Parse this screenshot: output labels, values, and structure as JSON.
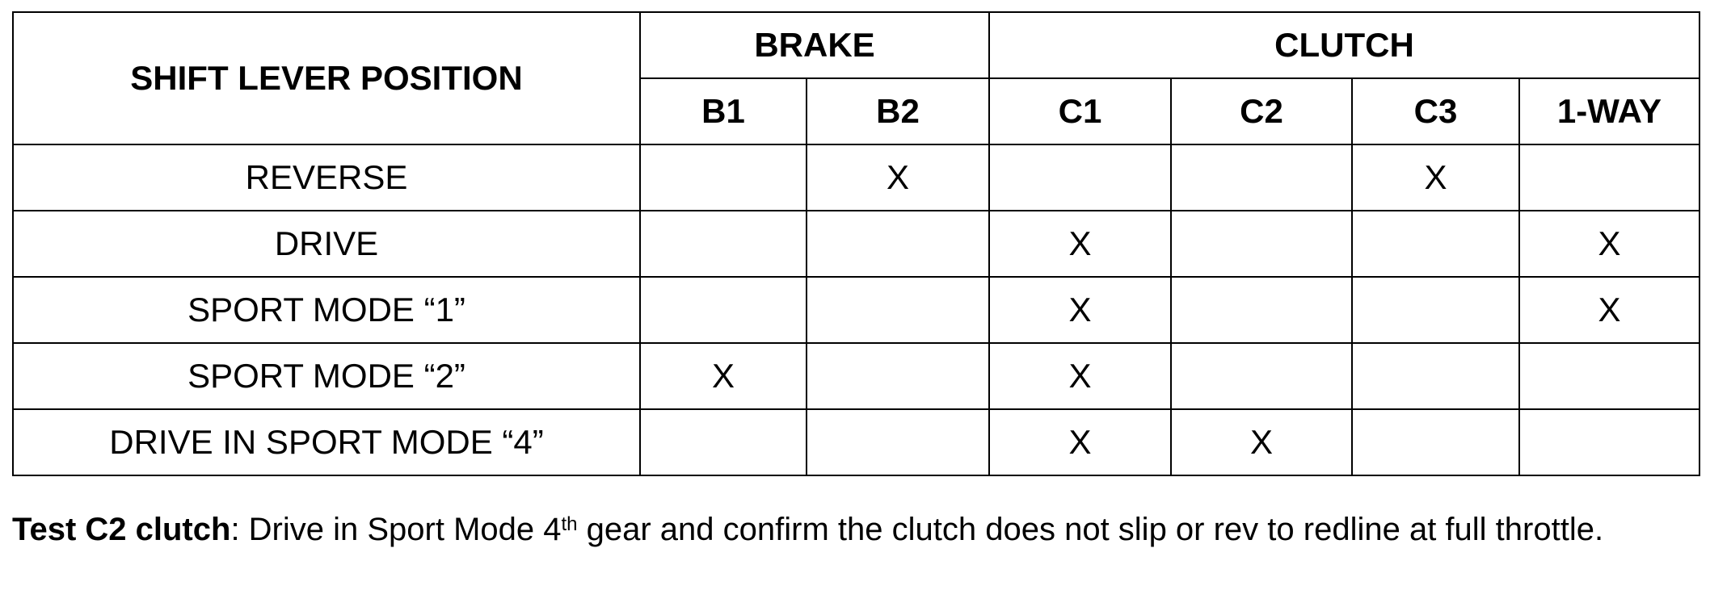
{
  "table": {
    "header": {
      "row_label": "SHIFT LEVER POSITION",
      "groups": [
        "BRAKE",
        "CLUTCH"
      ],
      "columns": [
        "B1",
        "B2",
        "C1",
        "C2",
        "C3",
        "1-WAY"
      ]
    },
    "rows": [
      {
        "label": "REVERSE",
        "cells": [
          "",
          "X",
          "",
          "",
          "X",
          ""
        ]
      },
      {
        "label": "DRIVE",
        "cells": [
          "",
          "",
          "X",
          "",
          "",
          "X"
        ]
      },
      {
        "label": "SPORT MODE “1”",
        "cells": [
          "",
          "",
          "X",
          "",
          "",
          "X"
        ]
      },
      {
        "label": "SPORT MODE “2”",
        "cells": [
          "X",
          "",
          "X",
          "",
          "",
          ""
        ]
      },
      {
        "label": "DRIVE IN SPORT MODE “4”",
        "cells": [
          "",
          "",
          "X",
          "X",
          "",
          ""
        ]
      }
    ]
  },
  "note": {
    "bold": "Test C2 clutch",
    "text1": ": Drive in Sport Mode 4",
    "sup": "th",
    "text2": " gear and confirm the clutch does not slip or rev to redline at full throttle."
  }
}
